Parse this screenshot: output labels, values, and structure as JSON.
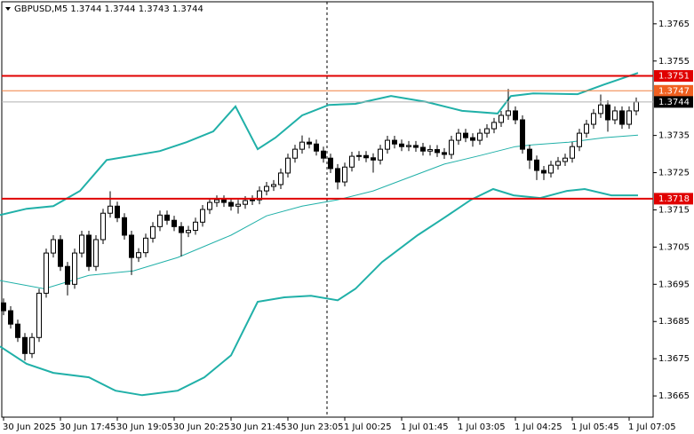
{
  "chart_data": {
    "type": "candlestick",
    "title": "GBPUSD,M5  1.3744 1.3744 1.3743 1.3744",
    "categories": [
      "30 Jun 2025",
      null,
      null,
      null,
      null,
      null,
      null,
      null,
      "30 Jun 17:45",
      null,
      null,
      null,
      null,
      null,
      null,
      null,
      "30 Jun 19:05",
      null,
      null,
      null,
      null,
      null,
      null,
      null,
      "30 Jun 20:25",
      null,
      null,
      null,
      null,
      null,
      null,
      null,
      "30 Jun 21:45",
      null,
      null,
      null,
      null,
      null,
      null,
      null,
      "30 Jun 23:05",
      null,
      null,
      null,
      null,
      null,
      null,
      null,
      "1 Jul 00:25",
      null,
      null,
      null,
      null,
      null,
      null,
      null,
      "1 Jul 01:45",
      null,
      null,
      null,
      null,
      null,
      null,
      null,
      "1 Jul 03:05",
      null,
      null,
      null,
      null,
      null,
      null,
      null,
      "1 Jul 04:25",
      null,
      null,
      null,
      null,
      null,
      null,
      null,
      "1 Jul 05:45",
      null,
      null,
      null,
      null,
      null,
      null,
      null,
      "1 Jul 07:05",
      null
    ],
    "open": [
      1.369,
      1.36879,
      1.36843,
      1.36807,
      1.36764,
      1.36807,
      1.36926,
      1.37034,
      1.3707,
      1.36998,
      1.3695,
      1.37034,
      1.37082,
      1.36998,
      1.3707,
      1.37141,
      1.3716,
      1.37129,
      1.37082,
      1.37022,
      1.37035,
      1.37074,
      1.37105,
      1.37136,
      1.37122,
      1.37105,
      1.37089,
      1.37095,
      1.37117,
      1.37151,
      1.3717,
      1.37177,
      1.3717,
      1.3716,
      1.37165,
      1.37175,
      1.37177,
      1.37201,
      1.37213,
      1.37218,
      1.37249,
      1.37289,
      1.37313,
      1.37332,
      1.37327,
      1.37308,
      1.37289,
      1.37261,
      1.37225,
      1.37265,
      1.37294,
      1.37296,
      1.3729,
      1.37284,
      1.37313,
      1.37337,
      1.37327,
      1.3732,
      1.37323,
      1.37318,
      1.37308,
      1.37312,
      1.37304,
      1.37299,
      1.37337,
      1.37356,
      1.37344,
      1.37337,
      1.37356,
      1.37368,
      1.37385,
      1.37404,
      1.37416,
      1.37392,
      1.37313,
      1.37284,
      1.37256,
      1.37249,
      1.3727,
      1.3728,
      1.37289,
      1.3732,
      1.37356,
      1.3738,
      1.37409,
      1.37432,
      1.37392,
      1.37416,
      1.3738,
      1.37416
    ],
    "high": [
      1.36912,
      1.36891,
      1.36855,
      1.36819,
      1.36819,
      1.36938,
      1.37046,
      1.37082,
      1.37082,
      1.3701,
      1.37046,
      1.37094,
      1.37094,
      1.37082,
      1.37153,
      1.372,
      1.37172,
      1.37141,
      1.37094,
      1.37047,
      1.37086,
      1.37117,
      1.37148,
      1.37148,
      1.37134,
      1.37117,
      1.37107,
      1.37129,
      1.37163,
      1.37182,
      1.37189,
      1.37189,
      1.37182,
      1.37177,
      1.37187,
      1.37189,
      1.37213,
      1.37225,
      1.3723,
      1.37261,
      1.37301,
      1.37325,
      1.3735,
      1.37344,
      1.37339,
      1.3732,
      1.37301,
      1.37273,
      1.37277,
      1.37306,
      1.37308,
      1.37308,
      1.37302,
      1.37325,
      1.37349,
      1.37349,
      1.37339,
      1.37335,
      1.37335,
      1.3733,
      1.37324,
      1.37324,
      1.37316,
      1.37349,
      1.37368,
      1.37368,
      1.37356,
      1.37368,
      1.3738,
      1.37397,
      1.37416,
      1.37475,
      1.37428,
      1.37404,
      1.37325,
      1.37296,
      1.37268,
      1.37282,
      1.37292,
      1.37301,
      1.37332,
      1.37368,
      1.37392,
      1.37421,
      1.3746,
      1.37444,
      1.37428,
      1.37428,
      1.37428,
      1.37452
    ],
    "low": [
      1.36867,
      1.36831,
      1.36795,
      1.36745,
      1.36752,
      1.36795,
      1.36914,
      1.37022,
      1.36986,
      1.3692,
      1.36938,
      1.37022,
      1.36986,
      1.36986,
      1.37058,
      1.37129,
      1.37117,
      1.3707,
      1.36975,
      1.3701,
      1.37023,
      1.37062,
      1.37093,
      1.3711,
      1.37093,
      1.37025,
      1.37077,
      1.37083,
      1.37105,
      1.37139,
      1.37158,
      1.37158,
      1.37148,
      1.3714,
      1.37153,
      1.37163,
      1.37165,
      1.37189,
      1.37201,
      1.37206,
      1.37237,
      1.37277,
      1.37301,
      1.37315,
      1.37296,
      1.37277,
      1.37249,
      1.37205,
      1.37213,
      1.37253,
      1.37282,
      1.37278,
      1.3725,
      1.37272,
      1.37301,
      1.37315,
      1.37308,
      1.37308,
      1.37306,
      1.37296,
      1.37296,
      1.37292,
      1.37287,
      1.37287,
      1.37325,
      1.37332,
      1.3732,
      1.37325,
      1.37344,
      1.37356,
      1.37373,
      1.37392,
      1.3738,
      1.37301,
      1.3726,
      1.3723,
      1.3723,
      1.37237,
      1.37258,
      1.37268,
      1.37277,
      1.37308,
      1.37344,
      1.37368,
      1.37397,
      1.3736,
      1.3738,
      1.37368,
      1.37368,
      1.37404
    ],
    "close": [
      1.36879,
      1.36843,
      1.36807,
      1.36764,
      1.36807,
      1.36926,
      1.37034,
      1.3707,
      1.36998,
      1.3695,
      1.37034,
      1.37082,
      1.36998,
      1.3707,
      1.37141,
      1.3716,
      1.37129,
      1.37082,
      1.37022,
      1.37035,
      1.37074,
      1.37105,
      1.37136,
      1.37122,
      1.37105,
      1.37089,
      1.37095,
      1.37117,
      1.37151,
      1.3717,
      1.37177,
      1.3717,
      1.3716,
      1.37165,
      1.37175,
      1.37177,
      1.37201,
      1.37213,
      1.37218,
      1.37249,
      1.37289,
      1.37313,
      1.37332,
      1.37327,
      1.37308,
      1.37289,
      1.37261,
      1.37225,
      1.37265,
      1.37294,
      1.37296,
      1.3729,
      1.37284,
      1.37313,
      1.37337,
      1.37327,
      1.3732,
      1.37323,
      1.37318,
      1.37308,
      1.37312,
      1.37304,
      1.37299,
      1.37337,
      1.37356,
      1.37344,
      1.37337,
      1.37356,
      1.37368,
      1.37385,
      1.37404,
      1.37416,
      1.37392,
      1.37313,
      1.37284,
      1.37256,
      1.37249,
      1.3727,
      1.3728,
      1.37289,
      1.3732,
      1.37356,
      1.3738,
      1.37409,
      1.37432,
      1.37392,
      1.37416,
      1.3738,
      1.37416,
      1.3744
    ],
    "up_color": "#ffffff",
    "down_color": "#000000",
    "candle_border": "#000000",
    "bands": [
      {
        "color": "#20b0a8",
        "x": [
          -0.5,
          3.25,
          7,
          10.75,
          14.5,
          18.25,
          22,
          25.75,
          29.5,
          32.625,
          35.75,
          38.25,
          42,
          45.75,
          49.5,
          54.5,
          59.5,
          64.5,
          69.5,
          71.375,
          74.5,
          80.75,
          84.5,
          89.25
        ],
        "values": [
          1.37136,
          1.37153,
          1.3716,
          1.37201,
          1.37284,
          1.37296,
          1.37308,
          1.37332,
          1.37361,
          1.37428,
          1.37313,
          1.37344,
          1.37404,
          1.37432,
          1.37435,
          1.37456,
          1.3744,
          1.37416,
          1.37409,
          1.37456,
          1.37463,
          1.37461,
          1.37487,
          1.37518
        ]
      },
      {
        "color": "#20b0a8",
        "x": [
          -0.5,
          5.75,
          12,
          18.25,
          24.5,
          32,
          37,
          42,
          47,
          52,
          57,
          62,
          67,
          72,
          74.5,
          79.5,
          84.5,
          89.25
        ],
        "values": [
          1.3696,
          1.36938,
          1.36974,
          1.36986,
          1.37022,
          1.37082,
          1.37134,
          1.3716,
          1.37177,
          1.37201,
          1.37237,
          1.37273,
          1.37296,
          1.3732,
          1.37325,
          1.37332,
          1.37344,
          1.37351
        ]
      },
      {
        "color": "#20b0a8",
        "x": [
          -0.5,
          3.25,
          7,
          12,
          15.75,
          19.5,
          24.5,
          28.25,
          32,
          35.75,
          39.5,
          43.25,
          47,
          49.5,
          53.25,
          58.25,
          62,
          65.75,
          68.875,
          71.75,
          75.5,
          79.25,
          81.75,
          85.5,
          89.25
        ],
        "values": [
          1.36783,
          1.36736,
          1.36712,
          1.367,
          1.36664,
          1.36652,
          1.36664,
          1.367,
          1.36759,
          1.36903,
          1.36915,
          1.36919,
          1.36907,
          1.36938,
          1.3701,
          1.37082,
          1.37129,
          1.37177,
          1.37206,
          1.37189,
          1.37182,
          1.37201,
          1.37206,
          1.37189,
          1.37189
        ]
      }
    ],
    "levels": [
      {
        "value": 1.3751,
        "color": "#e00000",
        "tag_color": "#e00000"
      },
      {
        "value": 1.3747,
        "color": "#f08040",
        "tag_color": "#f06020"
      },
      {
        "value": 1.3744,
        "color": "#b0b0b0",
        "tag_color": "#000000"
      },
      {
        "value": 1.3718,
        "color": "#e00000",
        "tag_color": "#e00000"
      }
    ],
    "ylim": [
      1.36593,
      1.37714
    ],
    "yticks": [
      1.3765,
      1.3755,
      1.3735,
      1.3725,
      1.3715,
      1.3705,
      1.3695,
      1.3685,
      1.3675,
      1.3665
    ],
    "grid": false
  }
}
